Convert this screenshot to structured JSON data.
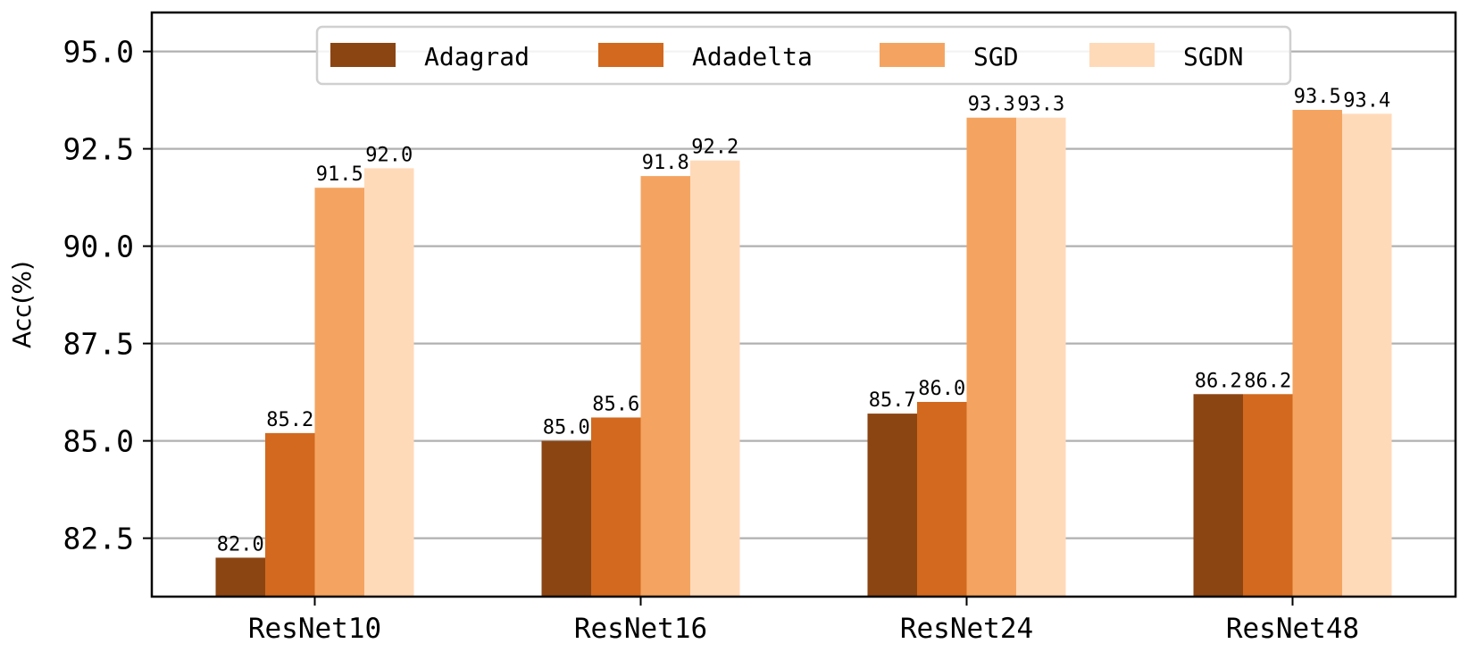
{
  "chart_data": {
    "type": "bar",
    "categories": [
      "ResNet10",
      "ResNet16",
      "ResNet24",
      "ResNet48"
    ],
    "series": [
      {
        "name": "Adagrad",
        "values": [
          82.0,
          85.0,
          85.7,
          86.2
        ],
        "labels": [
          "82.0",
          "85.0",
          "85.7",
          "86.2"
        ],
        "color": "#8B4513"
      },
      {
        "name": "Adadelta",
        "values": [
          85.2,
          85.6,
          86.0,
          86.2
        ],
        "labels": [
          "85.2",
          "85.6",
          "86.0",
          "86.2"
        ],
        "color": "#D2691E"
      },
      {
        "name": "SGD",
        "values": [
          91.5,
          91.8,
          93.3,
          93.5
        ],
        "labels": [
          "91.5",
          "91.8",
          "93.3",
          "93.5"
        ],
        "color": "#F4A460"
      },
      {
        "name": "SGDN",
        "values": [
          92.0,
          92.2,
          93.3,
          93.4
        ],
        "labels": [
          "92.0",
          "92.2",
          "93.3",
          "93.4"
        ],
        "color": "#FFDAB9"
      }
    ],
    "ylabel": "Acc(%)",
    "xlabel": "",
    "ylim": [
      81.0,
      96.0
    ],
    "yticks": [
      "82.5",
      "85.0",
      "87.5",
      "90.0",
      "92.5",
      "95.0"
    ],
    "grid": "horizontal",
    "legend_position": "top-center"
  }
}
